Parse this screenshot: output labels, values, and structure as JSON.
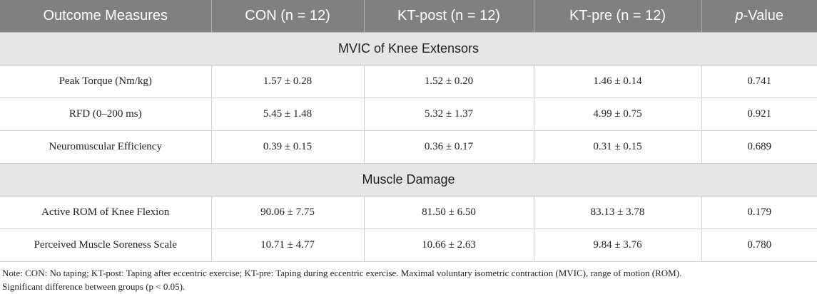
{
  "table": {
    "headers": [
      "Outcome Measures",
      "CON (n = 12)",
      "KT-post (n = 12)",
      "KT-pre (n = 12)"
    ],
    "pvalue_header": {
      "italic": "p",
      "rest": "-Value"
    },
    "sections": [
      {
        "title": "MVIC of Knee Extensors",
        "rows": [
          [
            "Peak Torque (Nm/kg)",
            "1.57 ± 0.28",
            "1.52 ± 0.20",
            "1.46 ± 0.14",
            "0.741"
          ],
          [
            "RFD (0–200 ms)",
            "5.45 ± 1.48",
            "5.32 ± 1.37",
            "4.99 ± 0.75",
            "0.921"
          ],
          [
            "Neuromuscular Efficiency",
            "0.39 ± 0.15",
            "0.36 ± 0.17",
            "0.31 ± 0.15",
            "0.689"
          ]
        ]
      },
      {
        "title": "Muscle Damage",
        "rows": [
          [
            "Active ROM of Knee Flexion",
            "90.06 ± 7.75",
            "81.50 ± 6.50",
            "83.13 ± 3.78",
            "0.179"
          ],
          [
            "Perceived Muscle Soreness Scale",
            "10.71 ± 4.77",
            "10.66 ± 2.63",
            "9.84 ± 3.76",
            "0.780"
          ]
        ]
      }
    ]
  },
  "note": {
    "line1": "Note: CON: No taping; KT-post: Taping after eccentric exercise; KT-pre: Taping during eccentric exercise. Maximal voluntary isometric contraction (MVIC), range of motion (ROM).",
    "line2": "Significant difference between groups (p < 0.05)."
  },
  "colors": {
    "header_bg": "#808080",
    "section_bg": "#e6e6e6"
  }
}
